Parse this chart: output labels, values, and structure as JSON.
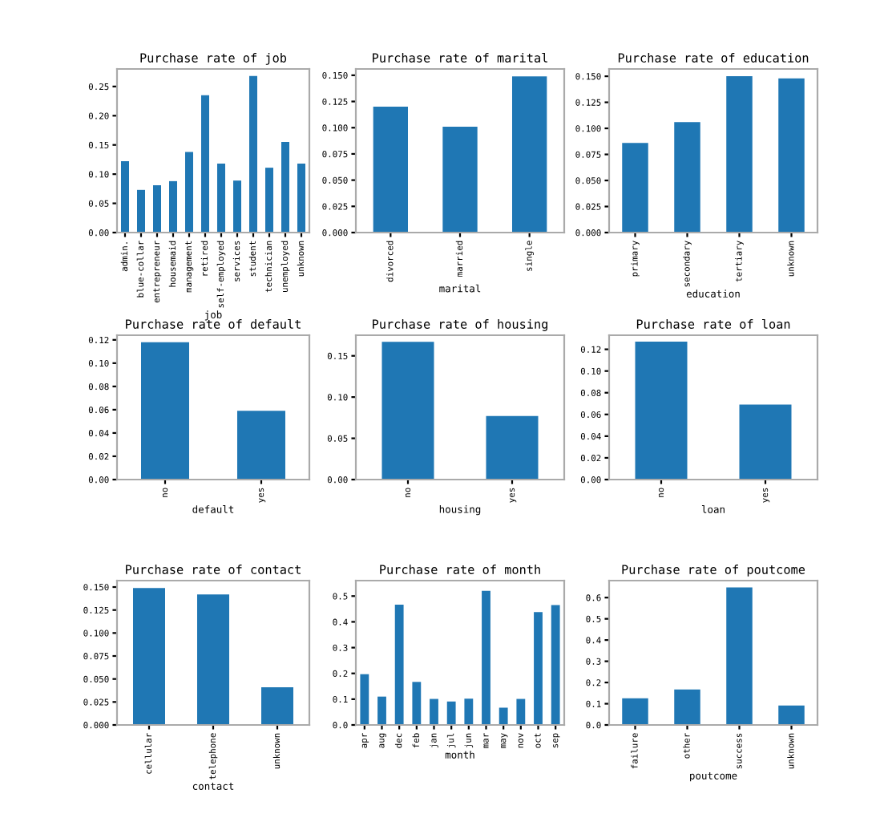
{
  "chart_data": [
    {
      "type": "bar",
      "title": "Purchase rate of job",
      "xlabel": "job",
      "categories": [
        "admin.",
        "blue-collar",
        "entrepreneur",
        "housemaid",
        "management",
        "retired",
        "self-employed",
        "services",
        "student",
        "technician",
        "unemployed",
        "unknown"
      ],
      "values": [
        0.122,
        0.073,
        0.081,
        0.088,
        0.138,
        0.235,
        0.118,
        0.089,
        0.268,
        0.111,
        0.155,
        0.118
      ],
      "color": "#1f77b4",
      "ylim": [
        0,
        0.28
      ],
      "yticks": [
        {
          "value": 0,
          "label": "0.00"
        },
        0.05,
        {
          "value": 0.1,
          "label": "0.10"
        },
        0.15,
        {
          "value": 0.2,
          "label": "0.20"
        },
        0.25
      ]
    },
    {
      "type": "bar",
      "title": "Purchase rate of marital",
      "xlabel": "marital",
      "categories": [
        "divorced",
        "married",
        "single"
      ],
      "values": [
        0.12,
        0.101,
        0.149
      ],
      "color": "#1f77b4",
      "ylim": [
        0,
        0.156
      ],
      "yticks": [
        {
          "value": 0,
          "label": "0.000"
        },
        0.025,
        {
          "value": 0.05,
          "label": "0.050"
        },
        0.075,
        {
          "value": 0.1,
          "label": "0.100"
        },
        0.125,
        {
          "value": 0.15,
          "label": "0.150"
        }
      ]
    },
    {
      "type": "bar",
      "title": "Purchase rate of education",
      "xlabel": "education",
      "categories": [
        "primary",
        "secondary",
        "tertiary",
        "unknown"
      ],
      "values": [
        0.086,
        0.106,
        0.15,
        0.148
      ],
      "color": "#1f77b4",
      "ylim": [
        0,
        0.157
      ],
      "yticks": [
        {
          "value": 0,
          "label": "0.000"
        },
        0.025,
        {
          "value": 0.05,
          "label": "0.050"
        },
        0.075,
        {
          "value": 0.1,
          "label": "0.100"
        },
        0.125,
        {
          "value": 0.15,
          "label": "0.150"
        }
      ]
    },
    {
      "type": "bar",
      "title": "Purchase rate of default",
      "xlabel": "default",
      "categories": [
        "no",
        "yes"
      ],
      "values": [
        0.118,
        0.059
      ],
      "color": "#1f77b4",
      "ylim": [
        0,
        0.124
      ],
      "yticks": [
        {
          "value": 0,
          "label": "0.00"
        },
        0.02,
        0.04,
        0.06,
        0.08,
        {
          "value": 0.1,
          "label": "0.10"
        },
        0.12
      ]
    },
    {
      "type": "bar",
      "title": "Purchase rate of housing",
      "xlabel": "housing",
      "categories": [
        "no",
        "yes"
      ],
      "values": [
        0.167,
        0.077
      ],
      "color": "#1f77b4",
      "ylim": [
        0,
        0.175
      ],
      "yticks": [
        {
          "value": 0,
          "label": "0.00"
        },
        0.05,
        {
          "value": 0.1,
          "label": "0.10"
        },
        0.15
      ]
    },
    {
      "type": "bar",
      "title": "Purchase rate of loan",
      "xlabel": "loan",
      "categories": [
        "no",
        "yes"
      ],
      "values": [
        0.127,
        0.069
      ],
      "color": "#1f77b4",
      "ylim": [
        0,
        0.133
      ],
      "yticks": [
        {
          "value": 0,
          "label": "0.00"
        },
        0.02,
        0.04,
        0.06,
        0.08,
        {
          "value": 0.1,
          "label": "0.10"
        },
        0.12
      ]
    },
    {
      "type": "bar",
      "title": "Purchase rate of contact",
      "xlabel": "contact",
      "categories": [
        "cellular",
        "telephone",
        "unknown"
      ],
      "values": [
        0.149,
        0.142,
        0.041
      ],
      "color": "#1f77b4",
      "ylim": [
        0,
        0.157
      ],
      "yticks": [
        {
          "value": 0,
          "label": "0.000"
        },
        0.025,
        {
          "value": 0.05,
          "label": "0.050"
        },
        0.075,
        {
          "value": 0.1,
          "label": "0.100"
        },
        0.125,
        {
          "value": 0.15,
          "label": "0.150"
        }
      ]
    },
    {
      "type": "bar",
      "title": "Purchase rate of month",
      "xlabel": "month",
      "categories": [
        "apr",
        "aug",
        "dec",
        "feb",
        "jan",
        "jul",
        "jun",
        "mar",
        "may",
        "nov",
        "oct",
        "sep"
      ],
      "values": [
        0.197,
        0.11,
        0.467,
        0.167,
        0.101,
        0.091,
        0.102,
        0.52,
        0.067,
        0.101,
        0.438,
        0.465
      ],
      "color": "#1f77b4",
      "ylim": [
        0,
        0.56
      ],
      "yticks": [
        {
          "value": 0,
          "label": "0.0"
        },
        0.1,
        0.2,
        0.3,
        0.4,
        0.5
      ]
    },
    {
      "type": "bar",
      "title": "Purchase rate of poutcome",
      "xlabel": "poutcome",
      "categories": [
        "failure",
        "other",
        "success",
        "unknown"
      ],
      "values": [
        0.126,
        0.167,
        0.648,
        0.092
      ],
      "color": "#1f77b4",
      "ylim": [
        0,
        0.68
      ],
      "yticks": [
        {
          "value": 0,
          "label": "0.0"
        },
        0.1,
        0.2,
        0.3,
        0.4,
        0.5,
        0.6
      ]
    }
  ]
}
